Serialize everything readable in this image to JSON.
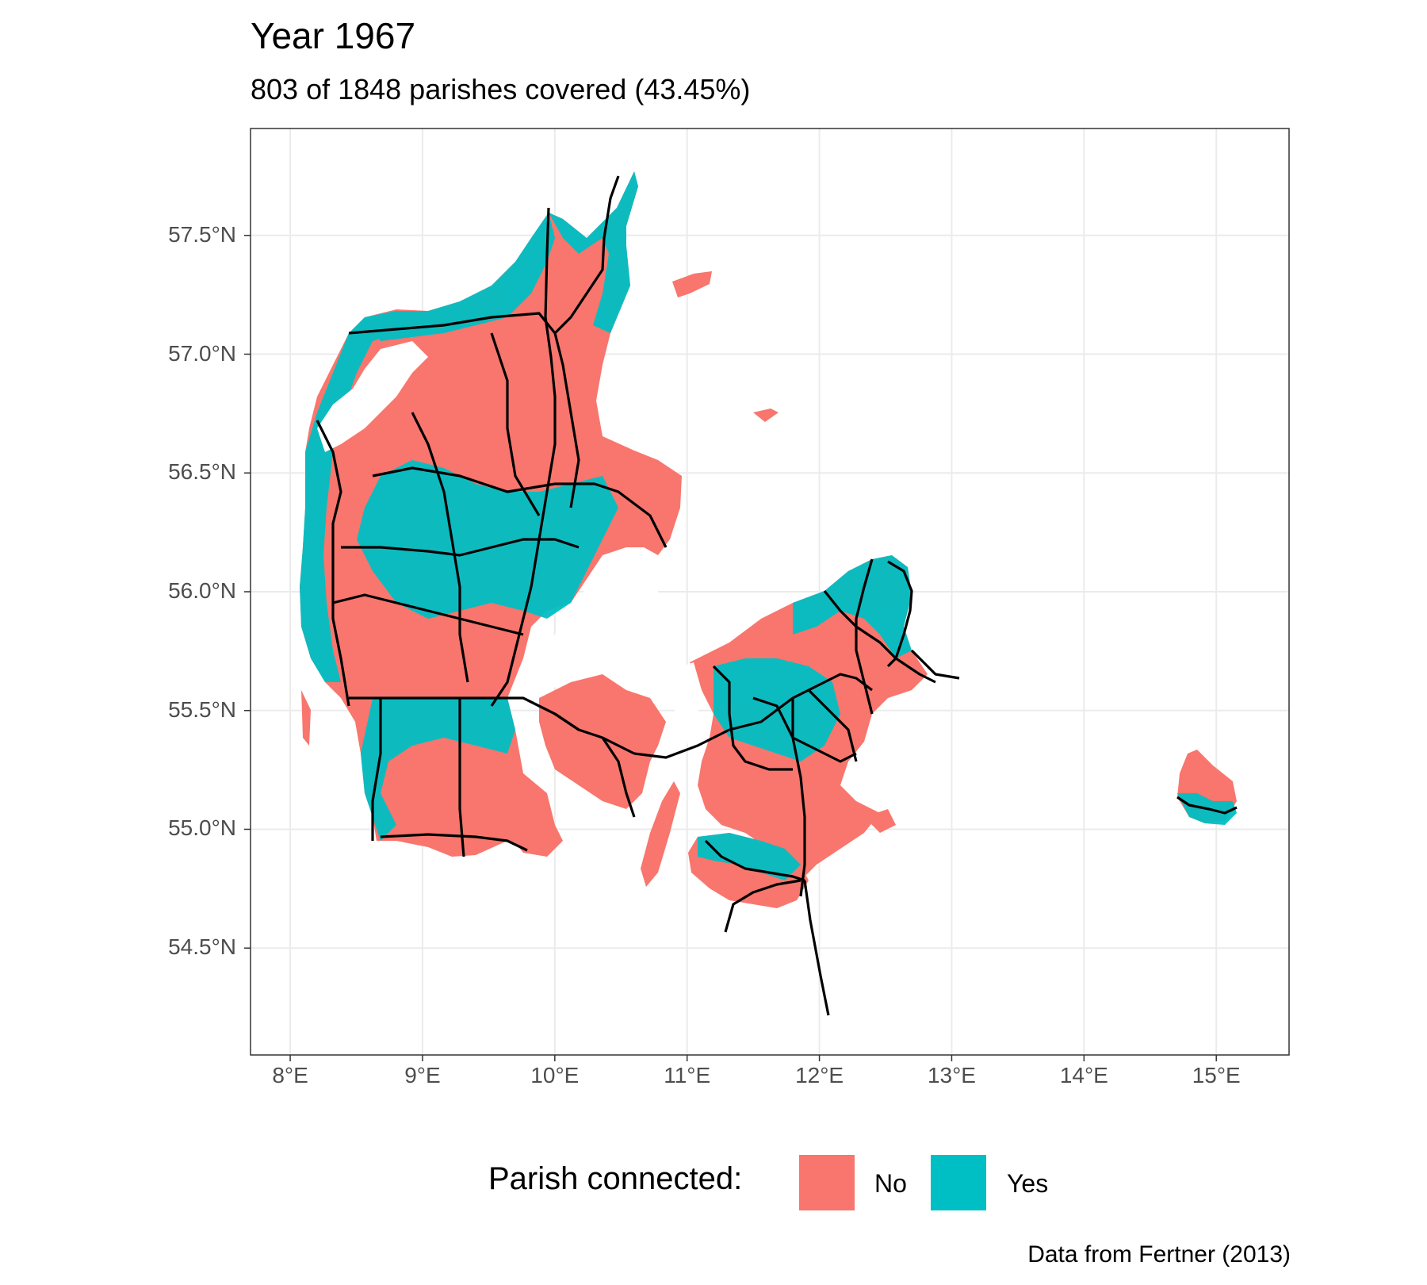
{
  "title": "Year 1967",
  "subtitle": "803 of 1848 parishes covered (43.45%)",
  "caption": "Data from Fertner (2013)",
  "colors": {
    "no": "#F8766D",
    "yes": "#00BFC4",
    "rail": "#000000",
    "grid": "#EBEBEB",
    "panel_border": "#333333"
  },
  "legend": {
    "title": "Parish connected:",
    "items": [
      {
        "label": "No",
        "color": "#F8766D"
      },
      {
        "label": "Yes",
        "color": "#00BFC4"
      }
    ]
  },
  "axes": {
    "x_ticks": [
      "8°E",
      "9°E",
      "10°E",
      "11°E",
      "12°E",
      "13°E",
      "14°E",
      "15°E"
    ],
    "y_ticks": [
      "57.5°N",
      "57.0°N",
      "56.5°N",
      "56.0°N",
      "55.5°N",
      "55.0°N",
      "54.5°N"
    ],
    "x_values": [
      8,
      9,
      10,
      11,
      12,
      13,
      14,
      15
    ],
    "y_values": [
      57.5,
      57.0,
      56.5,
      56.0,
      55.5,
      55.0,
      54.5
    ],
    "xlim": [
      7.7,
      15.55
    ],
    "ylim": [
      54.05,
      57.95
    ]
  },
  "chart_data": {
    "type": "map",
    "title": "Year 1967",
    "subtitle": "803 of 1848 parishes covered (43.45%)",
    "parishes_covered": 803,
    "parishes_total": 1848,
    "coverage_percent": 43.45,
    "categories": [
      "No",
      "Yes"
    ],
    "region": "Denmark",
    "xlabel": "",
    "ylabel": ""
  }
}
